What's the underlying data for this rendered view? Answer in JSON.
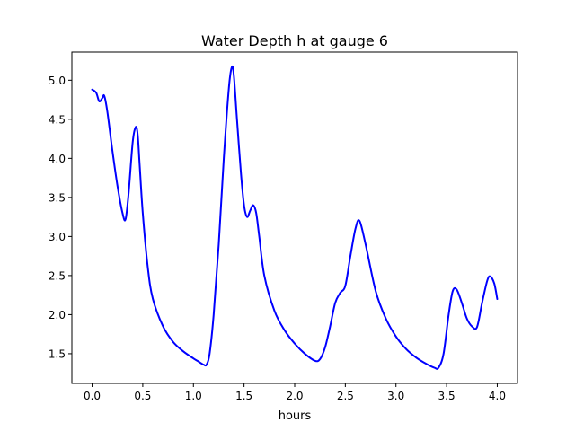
{
  "chart_data": {
    "type": "line",
    "title": "Water Depth h at gauge 6",
    "xlabel": "hours",
    "ylabel": "",
    "xlim": [
      -0.2,
      4.2
    ],
    "ylim": [
      1.12,
      5.36
    ],
    "xticks": [
      0.0,
      0.5,
      1.0,
      1.5,
      2.0,
      2.5,
      3.0,
      3.5,
      4.0
    ],
    "yticks": [
      1.5,
      2.0,
      2.5,
      3.0,
      3.5,
      4.0,
      4.5,
      5.0
    ],
    "xtick_labels": [
      "0.0",
      "0.5",
      "1.0",
      "1.5",
      "2.0",
      "2.5",
      "3.0",
      "3.5",
      "4.0"
    ],
    "ytick_labels": [
      "1.5",
      "2.0",
      "2.5",
      "3.0",
      "3.5",
      "4.0",
      "4.5",
      "5.0"
    ],
    "grid": false,
    "series": [
      {
        "color": "#0000ff",
        "x": [
          0.0,
          0.04,
          0.07,
          0.1,
          0.12,
          0.15,
          0.2,
          0.25,
          0.3,
          0.33,
          0.36,
          0.4,
          0.43,
          0.45,
          0.47,
          0.5,
          0.55,
          0.6,
          0.7,
          0.8,
          0.9,
          1.0,
          1.05,
          1.1,
          1.13,
          1.16,
          1.2,
          1.25,
          1.3,
          1.35,
          1.38,
          1.4,
          1.43,
          1.47,
          1.5,
          1.53,
          1.56,
          1.59,
          1.62,
          1.65,
          1.7,
          1.8,
          1.9,
          2.0,
          2.1,
          2.2,
          2.25,
          2.3,
          2.35,
          2.4,
          2.45,
          2.5,
          2.55,
          2.6,
          2.64,
          2.7,
          2.8,
          2.9,
          3.0,
          3.1,
          3.2,
          3.3,
          3.38,
          3.42,
          3.47,
          3.52,
          3.56,
          3.6,
          3.65,
          3.7,
          3.75,
          3.8,
          3.85,
          3.9,
          3.93,
          3.97,
          4.0
        ],
        "y": [
          4.88,
          4.84,
          4.73,
          4.77,
          4.8,
          4.6,
          4.1,
          3.65,
          3.3,
          3.22,
          3.55,
          4.2,
          4.4,
          4.3,
          3.9,
          3.3,
          2.6,
          2.2,
          1.85,
          1.65,
          1.53,
          1.44,
          1.4,
          1.36,
          1.36,
          1.5,
          2.0,
          2.9,
          4.0,
          4.9,
          5.17,
          5.05,
          4.5,
          3.8,
          3.4,
          3.25,
          3.33,
          3.4,
          3.3,
          3.0,
          2.5,
          2.05,
          1.8,
          1.63,
          1.5,
          1.41,
          1.43,
          1.58,
          1.85,
          2.15,
          2.28,
          2.37,
          2.75,
          3.1,
          3.2,
          2.9,
          2.3,
          1.95,
          1.72,
          1.56,
          1.45,
          1.37,
          1.32,
          1.32,
          1.5,
          2.0,
          2.3,
          2.32,
          2.15,
          1.95,
          1.85,
          1.84,
          2.15,
          2.43,
          2.49,
          2.4,
          2.2
        ]
      }
    ]
  }
}
